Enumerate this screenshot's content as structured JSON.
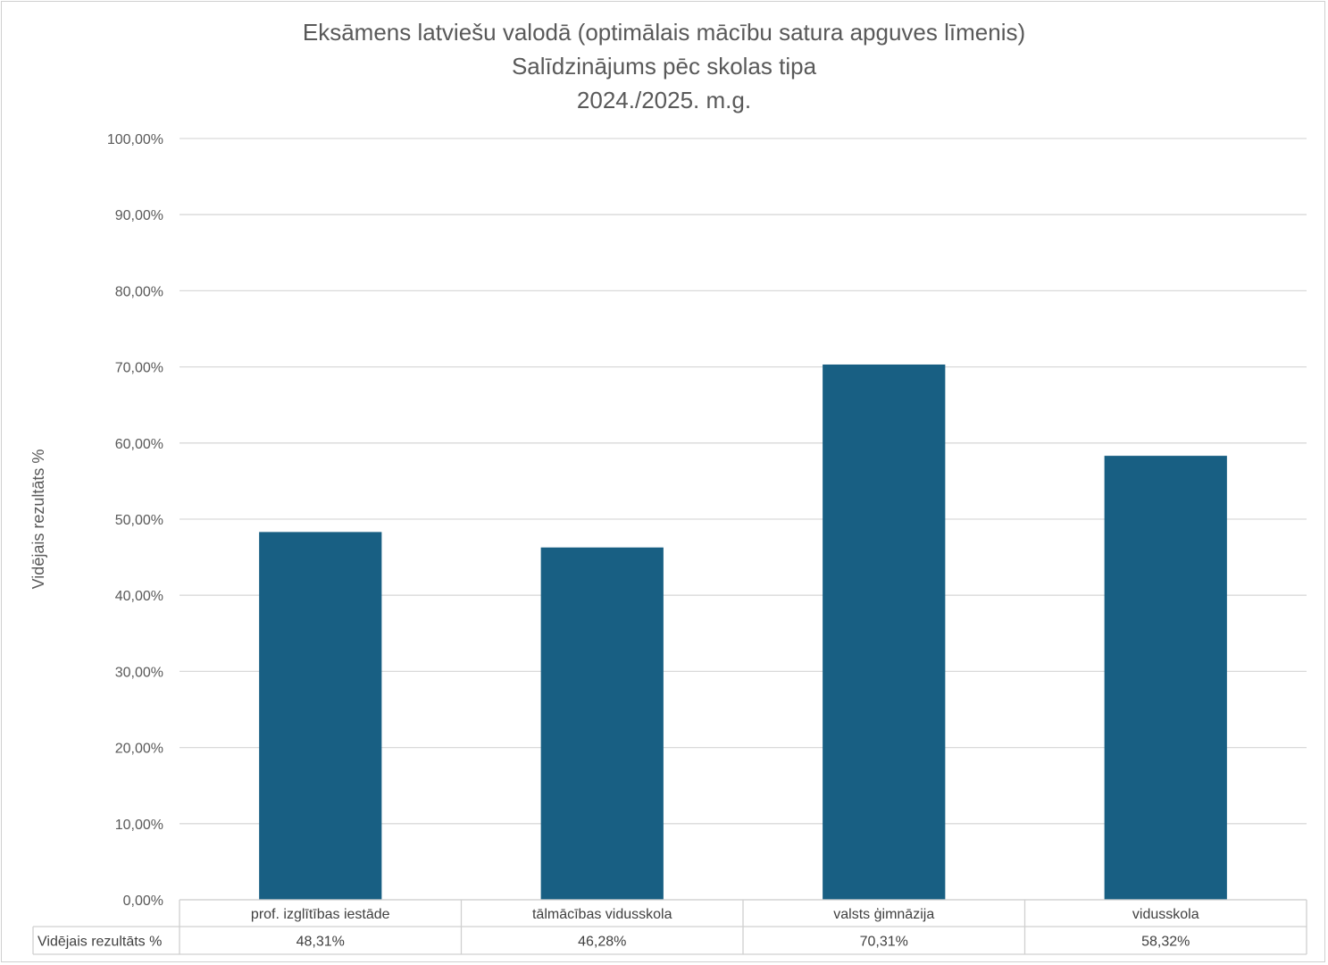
{
  "chart_data": {
    "type": "bar",
    "title": "Eksāmens latviešu valodā (optimālais mācību satura apguves līmenis)",
    "subtitle": "Salīdzinājums pēc skolas tipa",
    "period": "2024./2025. m.g.",
    "ylabel": "Vidējais rezultāts %",
    "xlabel": "",
    "ylim": [
      0,
      100
    ],
    "ytick_step": 10,
    "ytick_labels": [
      "0,00%",
      "10,00%",
      "20,00%",
      "30,00%",
      "40,00%",
      "50,00%",
      "60,00%",
      "70,00%",
      "80,00%",
      "90,00%",
      "100,00%"
    ],
    "grid": true,
    "legend": "none",
    "categories": [
      "prof. izglītības iestāde",
      "tālmācības vidusskola",
      "valsts ģimnāzija",
      "vidusskola"
    ],
    "series": [
      {
        "name": "Vidējais rezultāts %",
        "values": [
          48.31,
          46.28,
          70.31,
          58.32
        ],
        "value_labels": [
          "48,31%",
          "46,28%",
          "70,31%",
          "58,32%"
        ],
        "color": "#185F83"
      }
    ],
    "data_table": true
  }
}
